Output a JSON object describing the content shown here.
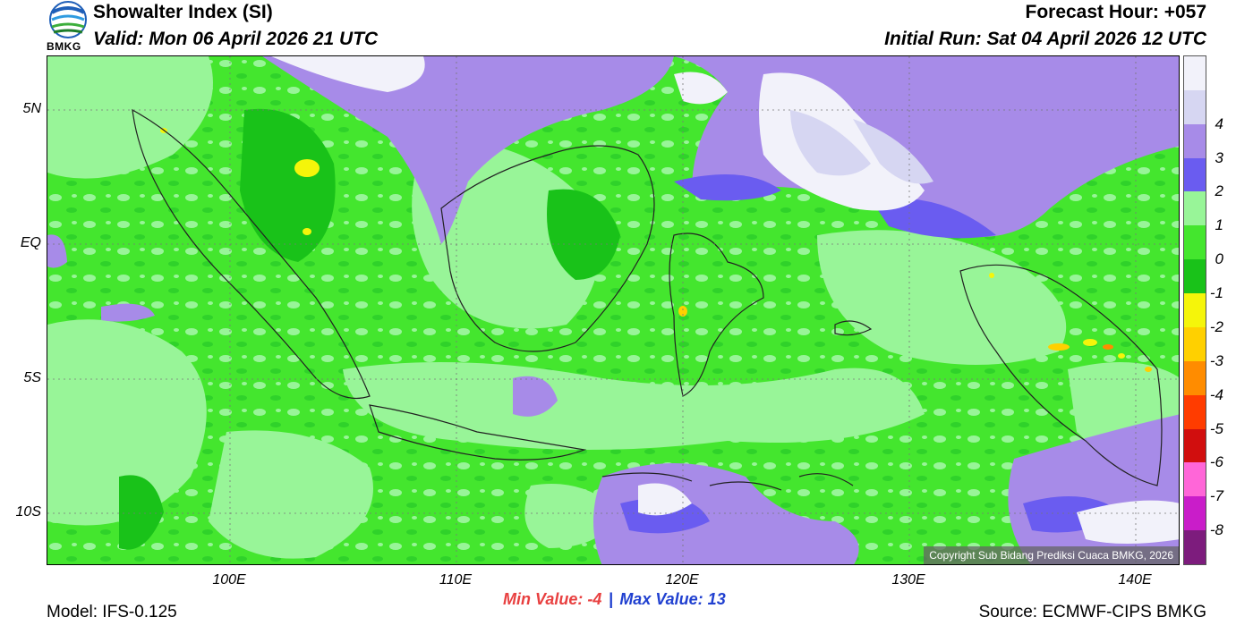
{
  "header": {
    "title": "Showalter Index (SI)",
    "valid": "Valid: Mon 06 April 2026 21 UTC",
    "forecast_hour": "Forecast Hour: +057",
    "initial_run": "Initial Run: Sat 04 April 2026 12 UTC",
    "logo_text": "BMKG"
  },
  "map": {
    "lat_labels": [
      "5N",
      "EQ",
      "5S",
      "10S"
    ],
    "lon_labels": [
      "100E",
      "110E",
      "120E",
      "130E",
      "140E"
    ],
    "copyright": "Copyright Sub Bidang Prediksi Cuaca BMKG, 2026"
  },
  "colorbar": {
    "labels": [
      "4",
      "3",
      "2",
      "1",
      "0",
      "-1",
      "-2",
      "-3",
      "-4",
      "-5",
      "-6",
      "-7",
      "-8"
    ],
    "colors": [
      "#f2f2fa",
      "#d6d6f2",
      "#a78be8",
      "#6a5cf0",
      "#98f598",
      "#44e62e",
      "#19c219",
      "#f5f50a",
      "#ffd000",
      "#ff8c00",
      "#ff3c00",
      "#d10e0e",
      "#ff66d8",
      "#c91dc9",
      "#7d1c7d"
    ]
  },
  "footer": {
    "model": "Model: IFS-0.125",
    "min_label": "Min Value:  -4",
    "separator": "|",
    "max_label": "Max Value:  13",
    "source": "Source: ECMWF-CIPS BMKG"
  }
}
